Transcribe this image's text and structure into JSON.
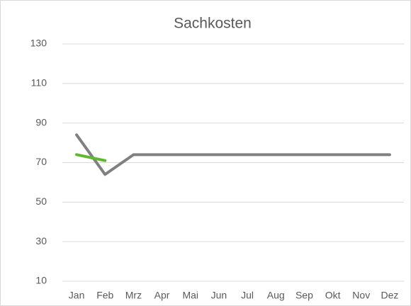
{
  "chart_data": {
    "type": "line",
    "title": "Sachkosten",
    "categories": [
      "Jan",
      "Feb",
      "Mrz",
      "Apr",
      "Mai",
      "Jun",
      "Jul",
      "Aug",
      "Sep",
      "Okt",
      "Nov",
      "Dez"
    ],
    "series": [
      {
        "color": "#808080",
        "values": [
          84,
          64,
          74,
          74,
          74,
          74,
          74,
          74,
          74,
          74,
          74,
          74
        ]
      },
      {
        "color": "#5fb832",
        "values": [
          74,
          71,
          null,
          null,
          null,
          null,
          null,
          null,
          null,
          null,
          null,
          null
        ]
      }
    ],
    "ylim": [
      10,
      130
    ],
    "yticks": [
      10,
      30,
      50,
      70,
      90,
      110,
      130
    ],
    "grid": true
  }
}
